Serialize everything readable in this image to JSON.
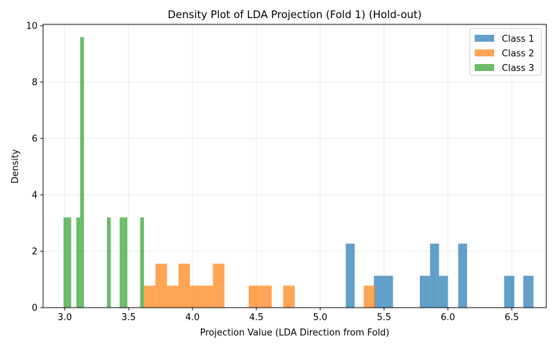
{
  "chart_data": {
    "type": "bar",
    "title": "Density Plot of LDA Projection (Fold 1) (Hold-out)",
    "xlabel": "Projection Value (LDA Direction from Fold)",
    "ylabel": "Density",
    "xlim": [
      2.83,
      6.77
    ],
    "ylim": [
      0,
      10.05
    ],
    "xticks": [
      3.0,
      3.5,
      4.0,
      4.5,
      5.0,
      5.5,
      6.0,
      6.5
    ],
    "yticks": [
      0,
      2,
      4,
      6,
      8,
      10
    ],
    "grid": true,
    "legend_position": "top-right",
    "series": [
      {
        "name": "Class 1",
        "color": "#1f77b4",
        "bins": [
          {
            "x0": 5.2,
            "x1": 5.27,
            "y": 2.27
          },
          {
            "x0": 5.42,
            "x1": 5.5,
            "y": 1.13
          },
          {
            "x0": 5.5,
            "x1": 5.57,
            "y": 1.13
          },
          {
            "x0": 5.78,
            "x1": 5.86,
            "y": 1.13
          },
          {
            "x0": 5.86,
            "x1": 5.93,
            "y": 2.27
          },
          {
            "x0": 5.93,
            "x1": 6.0,
            "y": 1.13
          },
          {
            "x0": 6.08,
            "x1": 6.15,
            "y": 2.27
          },
          {
            "x0": 6.44,
            "x1": 6.52,
            "y": 1.13
          },
          {
            "x0": 6.59,
            "x1": 6.67,
            "y": 1.13
          }
        ]
      },
      {
        "name": "Class 2",
        "color": "#ff7f0e",
        "bins": [
          {
            "x0": 3.62,
            "x1": 3.71,
            "y": 0.78
          },
          {
            "x0": 3.71,
            "x1": 3.8,
            "y": 1.56
          },
          {
            "x0": 3.8,
            "x1": 3.89,
            "y": 0.78
          },
          {
            "x0": 3.89,
            "x1": 3.98,
            "y": 1.56
          },
          {
            "x0": 3.98,
            "x1": 4.07,
            "y": 0.78
          },
          {
            "x0": 4.07,
            "x1": 4.16,
            "y": 0.78
          },
          {
            "x0": 4.16,
            "x1": 4.25,
            "y": 1.56
          },
          {
            "x0": 4.44,
            "x1": 4.53,
            "y": 0.78
          },
          {
            "x0": 4.53,
            "x1": 4.62,
            "y": 0.78
          },
          {
            "x0": 4.71,
            "x1": 4.8,
            "y": 0.78
          },
          {
            "x0": 5.34,
            "x1": 5.43,
            "y": 0.78
          }
        ]
      },
      {
        "name": "Class 3",
        "color": "#2ca02c",
        "bins": [
          {
            "x0": 2.99,
            "x1": 3.02,
            "y": 3.2
          },
          {
            "x0": 3.02,
            "x1": 3.05,
            "y": 3.2
          },
          {
            "x0": 3.09,
            "x1": 3.12,
            "y": 3.2
          },
          {
            "x0": 3.12,
            "x1": 3.15,
            "y": 9.6
          },
          {
            "x0": 3.33,
            "x1": 3.36,
            "y": 3.2
          },
          {
            "x0": 3.43,
            "x1": 3.46,
            "y": 3.2
          },
          {
            "x0": 3.46,
            "x1": 3.49,
            "y": 3.2
          },
          {
            "x0": 3.59,
            "x1": 3.62,
            "y": 3.2
          }
        ]
      }
    ]
  }
}
